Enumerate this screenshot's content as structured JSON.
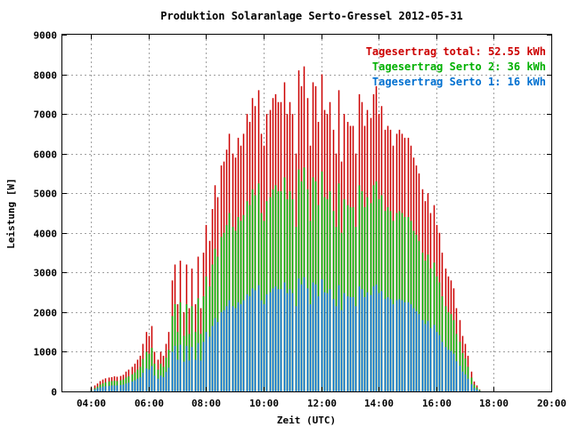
{
  "chart_data": {
    "type": "bar",
    "title": "Produktion Solaranlage Serto-Gressel 2012-05-31",
    "xlabel": "Zeit (UTC)",
    "ylabel": "Leistung [W]",
    "xlim": [
      3.0,
      20.0
    ],
    "ylim": [
      0,
      9000
    ],
    "x_ticks": [
      "04:00",
      "06:00",
      "08:00",
      "10:00",
      "12:00",
      "14:00",
      "16:00",
      "18:00",
      "20:00"
    ],
    "x_tick_values": [
      4,
      6,
      8,
      10,
      12,
      14,
      16,
      18,
      20
    ],
    "y_ticks": [
      "0",
      "1000",
      "2000",
      "3000",
      "4000",
      "5000",
      "6000",
      "7000",
      "8000",
      "9000"
    ],
    "y_tick_values": [
      0,
      1000,
      2000,
      3000,
      4000,
      5000,
      6000,
      7000,
      8000,
      9000
    ],
    "grid": true,
    "legend_position": "top-right",
    "legend": [
      {
        "label": "Tagesertrag total: 52.55 kWh",
        "color": "#cc0000"
      },
      {
        "label": "Tagesertrag Serto 2: 36 kWh",
        "color": "#00b000"
      },
      {
        "label": "Tagesertrag Serto 1: 16 kWh",
        "color": "#0070d0"
      }
    ],
    "series": [
      {
        "name": "Tagesertrag total: 52.55 kWh",
        "color": "#cc0000",
        "x": [
          4.0,
          4.1,
          4.2,
          4.3,
          4.4,
          4.5,
          4.6,
          4.7,
          4.8,
          4.9,
          5.0,
          5.1,
          5.2,
          5.3,
          5.4,
          5.5,
          5.6,
          5.7,
          5.8,
          5.9,
          6.0,
          6.1,
          6.2,
          6.3,
          6.4,
          6.5,
          6.6,
          6.7,
          6.8,
          6.9,
          7.0,
          7.1,
          7.2,
          7.3,
          7.4,
          7.5,
          7.6,
          7.7,
          7.8,
          7.9,
          8.0,
          8.1,
          8.2,
          8.3,
          8.4,
          8.5,
          8.6,
          8.7,
          8.8,
          8.9,
          9.0,
          9.1,
          9.2,
          9.3,
          9.4,
          9.5,
          9.6,
          9.7,
          9.8,
          9.9,
          10.0,
          10.1,
          10.2,
          10.3,
          10.4,
          10.5,
          10.6,
          10.7,
          10.8,
          10.9,
          11.0,
          11.1,
          11.2,
          11.3,
          11.4,
          11.5,
          11.6,
          11.7,
          11.8,
          11.9,
          12.0,
          12.1,
          12.2,
          12.3,
          12.4,
          12.5,
          12.6,
          12.7,
          12.8,
          12.9,
          13.0,
          13.1,
          13.2,
          13.3,
          13.4,
          13.5,
          13.6,
          13.7,
          13.8,
          13.9,
          14.0,
          14.1,
          14.2,
          14.3,
          14.4,
          14.5,
          14.6,
          14.7,
          14.8,
          14.9,
          15.0,
          15.1,
          15.2,
          15.3,
          15.4,
          15.5,
          15.6,
          15.7,
          15.8,
          15.9,
          16.0,
          16.1,
          16.2,
          16.3,
          16.4,
          16.5,
          16.6,
          16.7,
          16.8,
          16.9,
          17.0,
          17.1,
          17.2,
          17.3,
          17.4,
          17.5
        ],
        "values": [
          100,
          150,
          200,
          260,
          300,
          330,
          350,
          360,
          380,
          370,
          390,
          420,
          500,
          550,
          620,
          700,
          800,
          900,
          1200,
          1500,
          1400,
          1650,
          1000,
          800,
          1000,
          900,
          1200,
          1500,
          2800,
          3200,
          2200,
          3300,
          2000,
          3200,
          2100,
          3100,
          2200,
          3400,
          2100,
          3500,
          4200,
          3800,
          4600,
          5200,
          4900,
          5700,
          5800,
          6100,
          6500,
          6000,
          5900,
          6400,
          6200,
          6500,
          7000,
          6800,
          7400,
          7200,
          7600,
          6500,
          6200,
          7000,
          7100,
          7400,
          7500,
          7300,
          7300,
          7800,
          7000,
          7300,
          7000,
          6000,
          8100,
          7700,
          8200,
          7400,
          6200,
          7800,
          7700,
          6800,
          8000,
          7100,
          7000,
          7300,
          6600,
          6000,
          7600,
          5800,
          7000,
          6800,
          6700,
          6700,
          6000,
          7500,
          7300,
          6700,
          7100,
          6900,
          7500,
          7700,
          7000,
          7200,
          6600,
          6700,
          6600,
          6200,
          6500,
          6600,
          6500,
          6400,
          6400,
          6200,
          5900,
          5700,
          5500,
          5100,
          4800,
          5000,
          4500,
          4700,
          4200,
          4000,
          3500,
          3100,
          2900,
          2800,
          2600,
          2100,
          1800,
          1400,
          1200,
          900,
          500,
          250,
          150,
          50
        ]
      },
      {
        "name": "Tagesertrag Serto 2: 36 kWh",
        "color": "#00b000",
        "x": [
          4.0,
          4.1,
          4.2,
          4.3,
          4.4,
          4.5,
          4.6,
          4.7,
          4.8,
          4.9,
          5.0,
          5.1,
          5.2,
          5.3,
          5.4,
          5.5,
          5.6,
          5.7,
          5.8,
          5.9,
          6.0,
          6.1,
          6.2,
          6.3,
          6.4,
          6.5,
          6.6,
          6.7,
          6.8,
          6.9,
          7.0,
          7.1,
          7.2,
          7.3,
          7.4,
          7.5,
          7.6,
          7.7,
          7.8,
          7.9,
          8.0,
          8.1,
          8.2,
          8.3,
          8.4,
          8.5,
          8.6,
          8.7,
          8.8,
          8.9,
          9.0,
          9.1,
          9.2,
          9.3,
          9.4,
          9.5,
          9.6,
          9.7,
          9.8,
          9.9,
          10.0,
          10.1,
          10.2,
          10.3,
          10.4,
          10.5,
          10.6,
          10.7,
          10.8,
          10.9,
          11.0,
          11.1,
          11.2,
          11.3,
          11.4,
          11.5,
          11.6,
          11.7,
          11.8,
          11.9,
          12.0,
          12.1,
          12.2,
          12.3,
          12.4,
          12.5,
          12.6,
          12.7,
          12.8,
          12.9,
          13.0,
          13.1,
          13.2,
          13.3,
          13.4,
          13.5,
          13.6,
          13.7,
          13.8,
          13.9,
          14.0,
          14.1,
          14.2,
          14.3,
          14.4,
          14.5,
          14.6,
          14.7,
          14.8,
          14.9,
          15.0,
          15.1,
          15.2,
          15.3,
          15.4,
          15.5,
          15.6,
          15.7,
          15.8,
          15.9,
          16.0,
          16.1,
          16.2,
          16.3,
          16.4,
          16.5,
          16.6,
          16.7,
          16.8,
          16.9,
          17.0,
          17.1,
          17.2,
          17.3,
          17.4,
          17.5
        ],
        "values": [
          50,
          80,
          120,
          170,
          200,
          230,
          250,
          260,
          270,
          260,
          280,
          300,
          350,
          380,
          430,
          480,
          550,
          620,
          820,
          1000,
          950,
          1100,
          700,
          550,
          700,
          620,
          850,
          1050,
          1900,
          2200,
          1500,
          2250,
          1400,
          2200,
          1450,
          2150,
          1500,
          2350,
          1450,
          2400,
          2900,
          2650,
          3200,
          3600,
          3400,
          3900,
          4000,
          4200,
          4500,
          4150,
          4050,
          4400,
          4300,
          4450,
          4800,
          4700,
          5100,
          4950,
          5250,
          4500,
          4300,
          4800,
          4900,
          5100,
          5200,
          5050,
          5050,
          5400,
          4850,
          5050,
          4850,
          4150,
          5600,
          5300,
          5650,
          5100,
          4300,
          5400,
          5300,
          4700,
          5550,
          4900,
          4850,
          5050,
          4550,
          4150,
          5250,
          4000,
          4850,
          4700,
          4650,
          4650,
          4150,
          5200,
          5050,
          4650,
          4900,
          4750,
          5200,
          5300,
          4850,
          4950,
          4550,
          4650,
          4550,
          4300,
          4500,
          4550,
          4500,
          4400,
          4400,
          4300,
          4050,
          3950,
          3800,
          3500,
          3300,
          3450,
          3100,
          3250,
          2900,
          2750,
          2400,
          2150,
          2000,
          1950,
          1800,
          1450,
          1250,
          970,
          830,
          620,
          350,
          170,
          100,
          35
        ]
      },
      {
        "name": "Tagesertrag Serto 1: 16 kWh",
        "color": "#0070d0",
        "x": [
          4.0,
          4.1,
          4.2,
          4.3,
          4.4,
          4.5,
          4.6,
          4.7,
          4.8,
          4.9,
          5.0,
          5.1,
          5.2,
          5.3,
          5.4,
          5.5,
          5.6,
          5.7,
          5.8,
          5.9,
          6.0,
          6.1,
          6.2,
          6.3,
          6.4,
          6.5,
          6.6,
          6.7,
          6.8,
          6.9,
          7.0,
          7.1,
          7.2,
          7.3,
          7.4,
          7.5,
          7.6,
          7.7,
          7.8,
          7.9,
          8.0,
          8.1,
          8.2,
          8.3,
          8.4,
          8.5,
          8.6,
          8.7,
          8.8,
          8.9,
          9.0,
          9.1,
          9.2,
          9.3,
          9.4,
          9.5,
          9.6,
          9.7,
          9.8,
          9.9,
          10.0,
          10.1,
          10.2,
          10.3,
          10.4,
          10.5,
          10.6,
          10.7,
          10.8,
          10.9,
          11.0,
          11.1,
          11.2,
          11.3,
          11.4,
          11.5,
          11.6,
          11.7,
          11.8,
          11.9,
          12.0,
          12.1,
          12.2,
          12.3,
          12.4,
          12.5,
          12.6,
          12.7,
          12.8,
          12.9,
          13.0,
          13.1,
          13.2,
          13.3,
          13.4,
          13.5,
          13.6,
          13.7,
          13.8,
          13.9,
          14.0,
          14.1,
          14.2,
          14.3,
          14.4,
          14.5,
          14.6,
          14.7,
          14.8,
          14.9,
          15.0,
          15.1,
          15.2,
          15.3,
          15.4,
          15.5,
          15.6,
          15.7,
          15.8,
          15.9,
          16.0,
          16.1,
          16.2,
          16.3,
          16.4,
          16.5,
          16.6,
          16.7,
          16.8,
          16.9,
          17.0,
          17.1,
          17.2,
          17.3,
          17.4,
          17.5
        ],
        "values": [
          30,
          50,
          80,
          100,
          120,
          130,
          140,
          150,
          150,
          150,
          160,
          170,
          200,
          220,
          250,
          280,
          320,
          360,
          470,
          580,
          550,
          640,
          400,
          320,
          400,
          360,
          490,
          600,
          1000,
          1150,
          800,
          1180,
          750,
          1150,
          780,
          1120,
          800,
          1220,
          780,
          1250,
          1500,
          1380,
          1650,
          1850,
          1750,
          2000,
          2050,
          2150,
          2300,
          2150,
          2100,
          2250,
          2200,
          2300,
          2450,
          2400,
          2600,
          2550,
          2680,
          2300,
          2200,
          2450,
          2500,
          2600,
          2650,
          2580,
          2580,
          2750,
          2480,
          2580,
          2480,
          2150,
          2850,
          2700,
          2880,
          2600,
          2200,
          2750,
          2700,
          2400,
          2830,
          2500,
          2480,
          2580,
          2330,
          2150,
          2680,
          2050,
          2480,
          2400,
          2380,
          2380,
          2150,
          2650,
          2580,
          2380,
          2500,
          2430,
          2650,
          2700,
          2480,
          2530,
          2330,
          2380,
          2330,
          2200,
          2300,
          2330,
          2300,
          2250,
          2250,
          2200,
          2100,
          2020,
          1950,
          1800,
          1700,
          1780,
          1600,
          1680,
          1500,
          1420,
          1250,
          1120,
          1050,
          1020,
          950,
          760,
          650,
          500,
          430,
          320,
          180,
          90,
          50,
          15
        ]
      }
    ]
  }
}
